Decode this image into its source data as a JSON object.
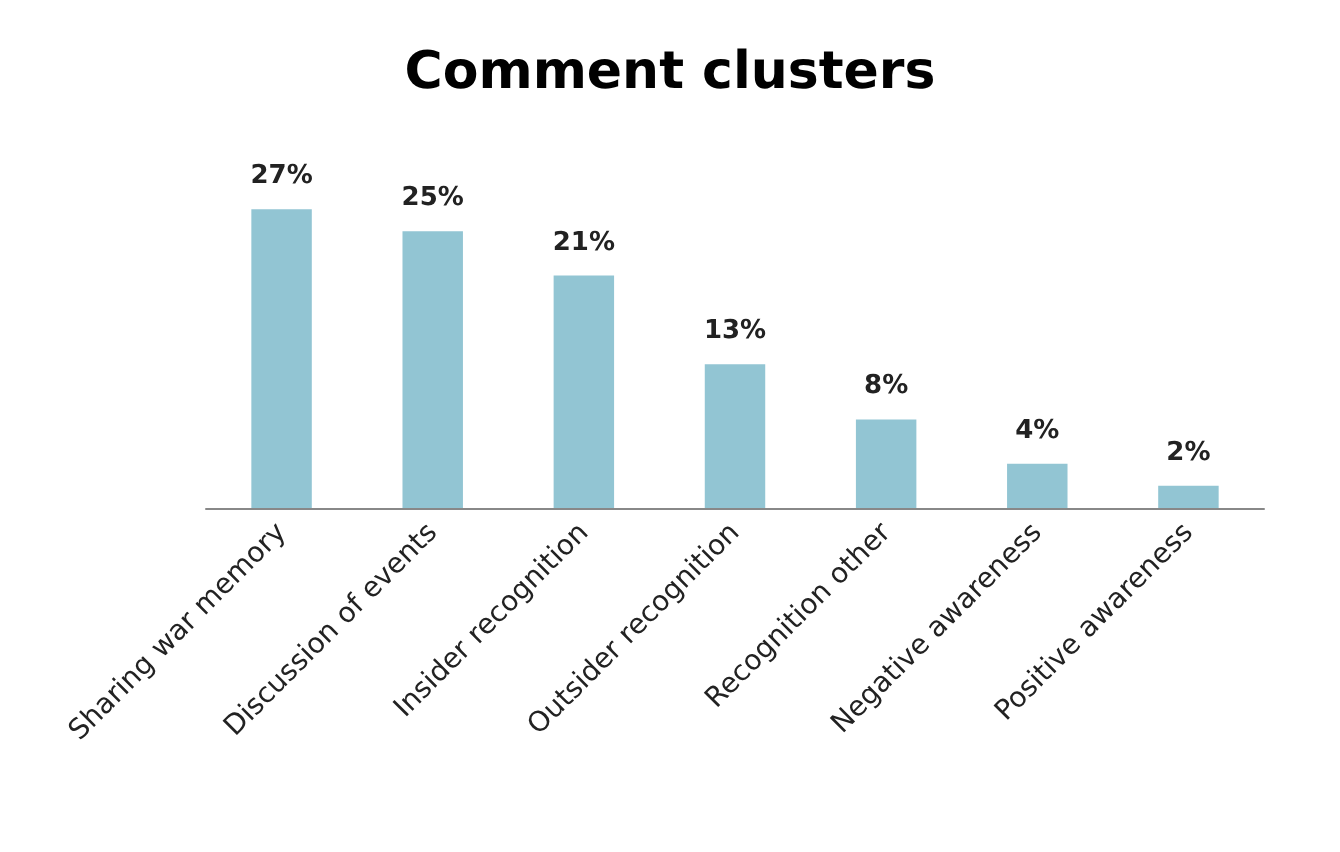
{
  "chart_data": {
    "type": "bar",
    "title": "Comment clusters",
    "categories": [
      "Sharing war memory",
      "Discussion of events",
      "Insider recognition",
      "Outsider recognition",
      "Recognition other",
      "Negative awareness",
      "Positive awareness"
    ],
    "values": [
      27,
      25,
      21,
      13,
      8,
      4,
      2
    ],
    "value_labels": [
      "27%",
      "25%",
      "21%",
      "13%",
      "8%",
      "4%",
      "2%"
    ],
    "color": "#92c5d3"
  }
}
